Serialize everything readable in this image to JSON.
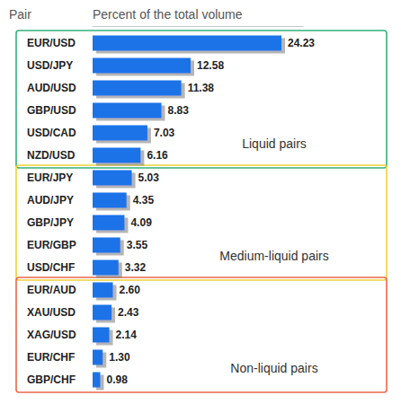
{
  "chart_data": {
    "type": "bar",
    "orientation": "horizontal",
    "y_label": "Pair",
    "x_label": "Percent of the total volume",
    "categories": [
      "EUR/USD",
      "USD/JPY",
      "AUD/USD",
      "GBP/USD",
      "USD/CAD",
      "NZD/USD",
      "EUR/JPY",
      "AUD/JPY",
      "GBP/JPY",
      "EUR/GBP",
      "USD/CHF",
      "EUR/AUD",
      "XAU/USD",
      "XAG/USD",
      "EUR/CHF",
      "GBP/CHF"
    ],
    "values": [
      24.23,
      12.58,
      11.38,
      8.83,
      7.03,
      6.16,
      5.03,
      4.35,
      4.09,
      3.55,
      3.32,
      2.6,
      2.43,
      2.14,
      1.3,
      0.98
    ],
    "value_labels": [
      "24.23",
      "12.58",
      "11.38",
      "8.83",
      "7.03",
      "6.16",
      "5.03",
      "4.35",
      "4.09",
      "3.55",
      "3.32",
      "2.60",
      "2.43",
      "2.14",
      "1.30",
      "0.98"
    ],
    "color": "#1a73e8",
    "xlim": [
      0,
      27
    ],
    "data_labels": true,
    "tick_labels": "y",
    "grid": false,
    "annotations": [
      {
        "text": "Liquid pairs",
        "from": "EUR/USD",
        "to": "NZD/USD",
        "color": "#35b07a"
      },
      {
        "text": "Medium-liquid pairs",
        "from": "EUR/JPY",
        "to": "USD/CHF",
        "color": "#f0d23a"
      },
      {
        "text": "Non-liquid pairs",
        "from": "EUR/AUD",
        "to": "GBP/CHF",
        "color": "#e8684a"
      }
    ]
  }
}
